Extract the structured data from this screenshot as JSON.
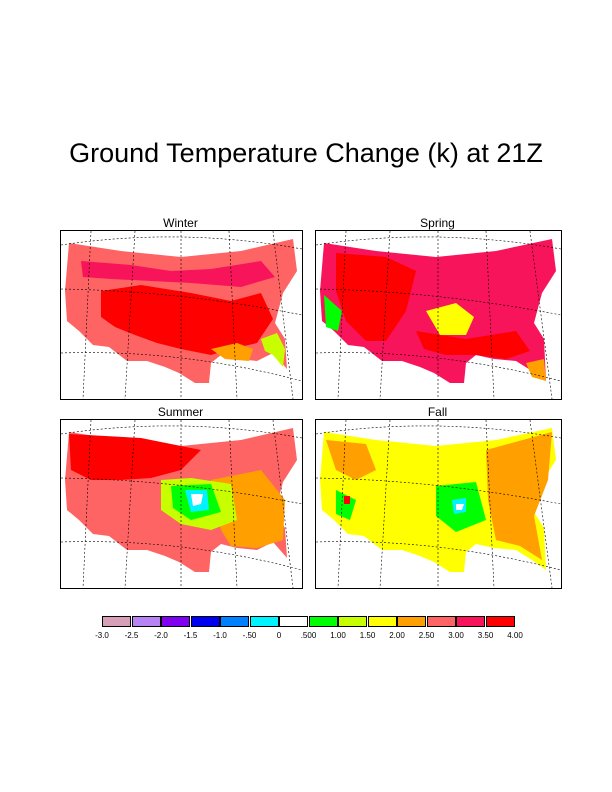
{
  "title": "Ground Temperature Change (k) at 21Z",
  "panels": [
    {
      "label": "Winter"
    },
    {
      "label": "Spring"
    },
    {
      "label": "Summer"
    },
    {
      "label": "Fall"
    }
  ],
  "colorbar": {
    "colors": [
      "#d8a0b8",
      "#b884f4",
      "#8000f0",
      "#0000f0",
      "#0080ff",
      "#00f4ff",
      "#ffffff",
      "#00ff00",
      "#c8ff00",
      "#ffff00",
      "#ffa000",
      "#ff6464",
      "#f8145a",
      "#ff0000"
    ],
    "labels": [
      "-3.0",
      "-2.5",
      "-2.0",
      "-1.5",
      "-1.0",
      "-.50",
      "0",
      ".500",
      "1.00",
      "1.50",
      "2.00",
      "2.50",
      "3.00",
      "3.50",
      "4.00"
    ]
  }
}
